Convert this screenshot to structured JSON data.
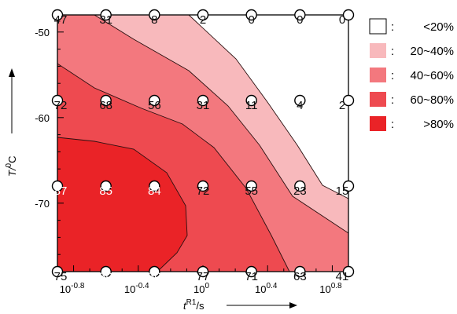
{
  "chart_data": {
    "type": "heatmap",
    "subtype": "filled-contour",
    "xlabel": {
      "main": "t",
      "sup": "R1",
      "unit": "/s"
    },
    "ylabel": {
      "main": "T/",
      "sup": "0",
      "unit": "C"
    },
    "x": [
      -0.9,
      -0.6,
      -0.3,
      0.0,
      0.3,
      0.6,
      0.9
    ],
    "x_scale": "log10",
    "xlim": [
      -0.9,
      0.9
    ],
    "x_ticks": [
      {
        "base": "10",
        "exp": "-0.8"
      },
      {
        "base": "10",
        "exp": "-0.4"
      },
      {
        "base": "10",
        "exp": "0"
      },
      {
        "base": "10",
        "exp": "0.4"
      },
      {
        "base": "10",
        "exp": "0.8"
      }
    ],
    "x_tick_values": [
      -0.8,
      -0.4,
      0.0,
      0.4,
      0.8
    ],
    "y": [
      -48,
      -58,
      -68,
      -78
    ],
    "ylim": [
      -78,
      -48
    ],
    "y_ticks": [
      "-50",
      "-60",
      "-70"
    ],
    "y_tick_values": [
      -50,
      -60,
      -70
    ],
    "grid": false,
    "values": [
      [
        "47",
        "31",
        "8",
        "2",
        "0",
        "0",
        "0"
      ],
      [
        "72",
        "68",
        "56",
        "31",
        "11",
        "4",
        "2"
      ],
      [
        "87",
        "85",
        "84",
        "72",
        "55",
        "23",
        "15"
      ],
      [
        "75",
        "80",
        "80",
        "77",
        "71",
        "63",
        "41"
      ]
    ],
    "bands": [
      {
        "label": "<20%",
        "color": "#ffffff"
      },
      {
        "label": "20~40%",
        "color": "#f8b9bc"
      },
      {
        "label": "40~60%",
        "color": "#f3787e"
      },
      {
        "label": "60~80%",
        "color": "#ee4a50"
      },
      {
        "label": ">80%",
        "color": "#ea2327"
      }
    ],
    "legend_placement": "right",
    "legend_separator": ":"
  }
}
